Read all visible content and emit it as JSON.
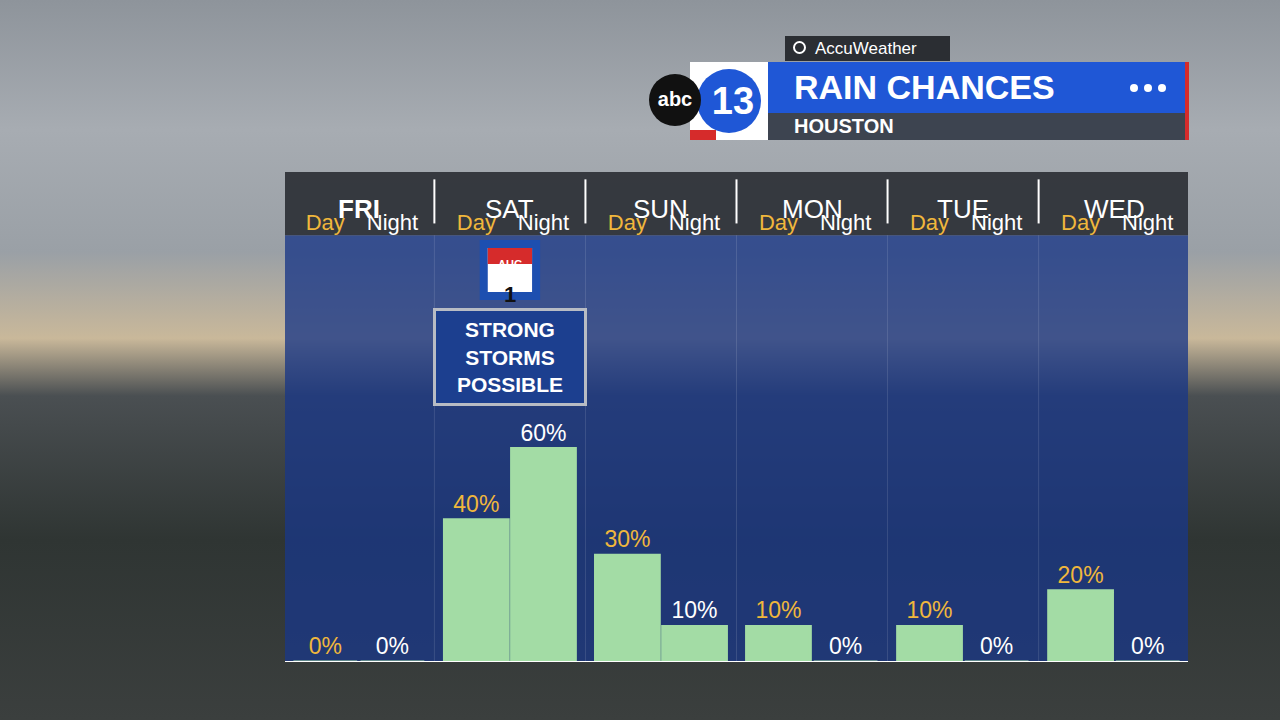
{
  "chart_data": {
    "type": "bar",
    "title": "RAIN CHANCES",
    "subtitle": "HOUSTON",
    "source": "AccuWeather",
    "logo": [
      "abc",
      "13"
    ],
    "groups": [
      "FRI",
      "SAT",
      "SUN",
      "MON",
      "TUE",
      "WED"
    ],
    "categories": [
      "Day",
      "Night",
      "Day",
      "Night",
      "Day",
      "Night",
      "Day",
      "Night",
      "Day",
      "Night",
      "Day",
      "Night"
    ],
    "values": [
      0,
      0,
      40,
      60,
      30,
      10,
      10,
      0,
      10,
      0,
      20,
      0
    ],
    "value_labels": [
      "0%",
      "0%",
      "40%",
      "60%",
      "30%",
      "10%",
      "10%",
      "0%",
      "10%",
      "0%",
      "20%",
      "0%"
    ],
    "color": "#a3dca5",
    "ylim": [
      0,
      120
    ],
    "yticks": [],
    "grid": false,
    "data_labels": true,
    "tick_labels": "x",
    "annotations": [
      {
        "text": "STRONG STORMS POSSIBLE",
        "group": "SAT"
      }
    ],
    "date_marker": {
      "group": "SAT",
      "month": "AUG",
      "day": 1
    }
  }
}
